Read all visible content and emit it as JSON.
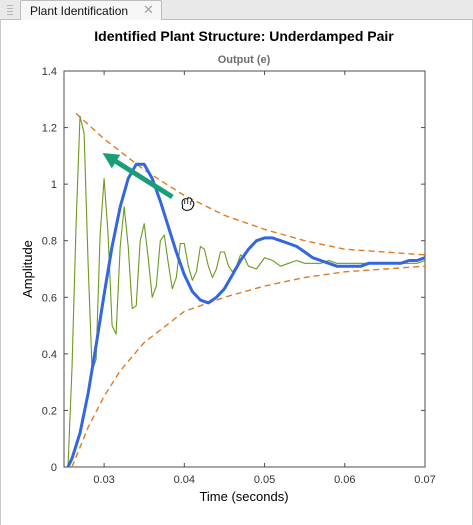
{
  "tab": {
    "label": "Plant Identification",
    "close_glyph": "✕"
  },
  "plot": {
    "title": "Identified Plant Structure: Underdamped Pair",
    "subtitle": "Output (e)",
    "xlabel": "Time (seconds)",
    "ylabel": "Amplitude"
  },
  "chart_data": {
    "type": "line",
    "xlim": [
      0.025,
      0.07
    ],
    "ylim": [
      0,
      1.4
    ],
    "x_ticks": [
      "0.03",
      "0.04",
      "0.05",
      "0.06",
      "0.07"
    ],
    "x_tick_values": [
      0.03,
      0.04,
      0.05,
      0.06,
      0.07
    ],
    "y_ticks": [
      "0",
      "0.2",
      "0.4",
      "0.6",
      "0.8",
      "1",
      "1.2",
      "1.4"
    ],
    "y_tick_values": [
      0,
      0.2,
      0.4,
      0.6,
      0.8,
      1.0,
      1.2,
      1.4
    ],
    "grid": false,
    "series": [
      {
        "kind": "blue-response",
        "color": "#3366e0",
        "x": [
          0.0255,
          0.026,
          0.027,
          0.028,
          0.029,
          0.03,
          0.031,
          0.032,
          0.033,
          0.034,
          0.035,
          0.036,
          0.037,
          0.038,
          0.039,
          0.04,
          0.041,
          0.042,
          0.043,
          0.044,
          0.045,
          0.046,
          0.047,
          0.048,
          0.049,
          0.05,
          0.051,
          0.052,
          0.053,
          0.054,
          0.055,
          0.056,
          0.057,
          0.058,
          0.059,
          0.06,
          0.061,
          0.062,
          0.063,
          0.064,
          0.065,
          0.066,
          0.067,
          0.068,
          0.069,
          0.07
        ],
        "y": [
          0.0,
          0.03,
          0.12,
          0.26,
          0.43,
          0.61,
          0.78,
          0.92,
          1.02,
          1.07,
          1.07,
          1.02,
          0.94,
          0.85,
          0.76,
          0.68,
          0.62,
          0.59,
          0.58,
          0.6,
          0.63,
          0.68,
          0.73,
          0.77,
          0.8,
          0.81,
          0.81,
          0.8,
          0.79,
          0.78,
          0.76,
          0.74,
          0.73,
          0.72,
          0.71,
          0.71,
          0.71,
          0.71,
          0.72,
          0.72,
          0.72,
          0.72,
          0.72,
          0.73,
          0.73,
          0.74
        ]
      },
      {
        "kind": "green-response",
        "color": "#6a9a1f",
        "x": [
          0.0255,
          0.026,
          0.0265,
          0.027,
          0.0275,
          0.028,
          0.0285,
          0.029,
          0.0295,
          0.03,
          0.0305,
          0.031,
          0.0315,
          0.032,
          0.0325,
          0.033,
          0.0335,
          0.034,
          0.0345,
          0.035,
          0.0355,
          0.036,
          0.0365,
          0.037,
          0.0375,
          0.038,
          0.0385,
          0.039,
          0.0395,
          0.04,
          0.0405,
          0.041,
          0.0415,
          0.042,
          0.0425,
          0.043,
          0.0435,
          0.044,
          0.0445,
          0.045,
          0.0455,
          0.046,
          0.0465,
          0.047,
          0.0475,
          0.048,
          0.049,
          0.05,
          0.051,
          0.052,
          0.053,
          0.054,
          0.055,
          0.056,
          0.057,
          0.058,
          0.059,
          0.06,
          0.061,
          0.062,
          0.063,
          0.064,
          0.065,
          0.066,
          0.067,
          0.068,
          0.069,
          0.07
        ],
        "y": [
          0.0,
          0.35,
          0.85,
          1.24,
          1.18,
          0.72,
          0.34,
          0.38,
          0.82,
          1.02,
          0.82,
          0.5,
          0.47,
          0.78,
          0.92,
          0.78,
          0.56,
          0.57,
          0.8,
          0.86,
          0.74,
          0.6,
          0.64,
          0.8,
          0.82,
          0.72,
          0.63,
          0.67,
          0.79,
          0.79,
          0.71,
          0.66,
          0.69,
          0.78,
          0.77,
          0.71,
          0.67,
          0.7,
          0.76,
          0.76,
          0.71,
          0.69,
          0.71,
          0.75,
          0.74,
          0.71,
          0.7,
          0.74,
          0.73,
          0.71,
          0.72,
          0.73,
          0.72,
          0.72,
          0.72,
          0.73,
          0.72,
          0.72,
          0.72,
          0.72,
          0.72,
          0.72,
          0.72,
          0.72,
          0.72,
          0.72,
          0.72,
          0.73
        ]
      },
      {
        "kind": "upper-envelope",
        "color": "#e07b1f",
        "dashed": true,
        "x": [
          0.0265,
          0.03,
          0.035,
          0.04,
          0.045,
          0.05,
          0.055,
          0.06,
          0.065,
          0.07
        ],
        "y": [
          1.25,
          1.16,
          1.05,
          0.96,
          0.89,
          0.84,
          0.8,
          0.77,
          0.76,
          0.75
        ]
      },
      {
        "kind": "lower-envelope",
        "color": "#e07b1f",
        "dashed": true,
        "x": [
          0.026,
          0.028,
          0.03,
          0.032,
          0.035,
          0.04,
          0.045,
          0.05,
          0.055,
          0.06,
          0.065,
          0.07
        ],
        "y": [
          0.0,
          0.14,
          0.25,
          0.34,
          0.44,
          0.55,
          0.6,
          0.64,
          0.67,
          0.69,
          0.7,
          0.71
        ]
      }
    ],
    "annotations": [
      {
        "kind": "arrow",
        "color": "#1a9e78",
        "from": [
          0.0385,
          0.955
        ],
        "to": [
          0.0298,
          1.11
        ]
      }
    ],
    "cursor": {
      "kind": "grab-hand-cursor",
      "x": 0.0403,
      "y": 0.93
    }
  }
}
